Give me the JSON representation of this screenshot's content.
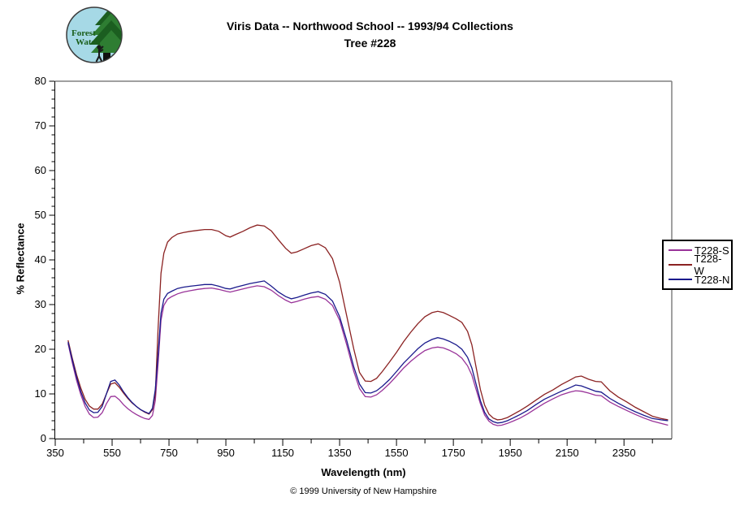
{
  "header": {
    "title_line1": "Viris Data -- Northwood School -- 1993/94 Collections",
    "title_line2": "Tree #228"
  },
  "logo": {
    "line1": "Forest",
    "line2": "Watch",
    "bg_color": "#a6d9e6",
    "outline_color": "#3a3a3a",
    "text_color": "#1a5e1a",
    "tree_dark": "#1b5e20",
    "tree_light": "#2e7d32",
    "trunk_color": "#101010",
    "person_color": "#1a1a1a"
  },
  "footer": {
    "copyright": "© 1999 University of New Hampshire"
  },
  "chart_data": {
    "type": "line",
    "title": "Viris Data -- Northwood School -- 1993/94 Collections",
    "subtitle": "Tree #228",
    "xlabel": "Wavelength (nm)",
    "ylabel": "% Reflectance",
    "xlim": [
      350,
      2518
    ],
    "ylim": [
      0,
      80
    ],
    "x_ticks": [
      350,
      550,
      750,
      950,
      1150,
      1350,
      1550,
      1750,
      1950,
      2150,
      2350
    ],
    "x_minor_step": 100,
    "y_ticks": [
      0,
      10,
      20,
      30,
      40,
      50,
      60,
      70,
      80
    ],
    "y_minor_step": 2,
    "grid": false,
    "legend_position": "right",
    "axis_colors": {
      "frame": "#808080",
      "axis": "#000000"
    },
    "x": [
      395,
      410,
      425,
      440,
      455,
      470,
      485,
      500,
      515,
      530,
      545,
      560,
      575,
      590,
      605,
      620,
      635,
      650,
      665,
      680,
      692,
      702,
      712,
      722,
      732,
      745,
      760,
      780,
      800,
      825,
      850,
      875,
      900,
      925,
      950,
      965,
      985,
      1010,
      1035,
      1060,
      1085,
      1110,
      1135,
      1160,
      1180,
      1200,
      1225,
      1250,
      1275,
      1300,
      1325,
      1350,
      1375,
      1400,
      1420,
      1440,
      1460,
      1480,
      1500,
      1525,
      1550,
      1575,
      1600,
      1625,
      1650,
      1675,
      1695,
      1715,
      1735,
      1760,
      1780,
      1800,
      1815,
      1830,
      1845,
      1860,
      1875,
      1890,
      1905,
      1920,
      1940,
      1960,
      1985,
      2010,
      2040,
      2070,
      2100,
      2130,
      2160,
      2180,
      2200,
      2225,
      2250,
      2270,
      2300,
      2330,
      2360,
      2390,
      2420,
      2450,
      2480,
      2505
    ],
    "series": [
      {
        "name": "T228-S",
        "color": "#993399",
        "values": [
          21.3,
          17.0,
          13.0,
          9.8,
          7.2,
          5.5,
          4.7,
          4.8,
          5.8,
          7.8,
          9.4,
          9.5,
          8.7,
          7.6,
          6.7,
          6.0,
          5.4,
          4.9,
          4.5,
          4.3,
          5.2,
          8.5,
          17.0,
          26.5,
          29.8,
          31.2,
          31.8,
          32.4,
          32.8,
          33.1,
          33.4,
          33.6,
          33.7,
          33.4,
          33.0,
          32.8,
          33.1,
          33.5,
          33.9,
          34.2,
          34.0,
          33.2,
          32.0,
          31.0,
          30.4,
          30.7,
          31.2,
          31.6,
          31.8,
          31.2,
          29.8,
          26.5,
          21.0,
          15.0,
          11.2,
          9.4,
          9.3,
          9.8,
          10.8,
          12.3,
          14.0,
          15.8,
          17.3,
          18.6,
          19.7,
          20.3,
          20.5,
          20.3,
          19.8,
          19.0,
          18.0,
          16.3,
          14.2,
          11.0,
          7.8,
          5.3,
          3.9,
          3.2,
          2.9,
          3.0,
          3.4,
          3.9,
          4.6,
          5.5,
          6.7,
          7.9,
          8.9,
          9.8,
          10.4,
          10.7,
          10.6,
          10.2,
          9.7,
          9.6,
          8.2,
          7.2,
          6.3,
          5.4,
          4.6,
          3.9,
          3.4,
          3.0
        ]
      },
      {
        "name": "T228-W",
        "color": "#8b2222",
        "values": [
          22.0,
          18.0,
          14.3,
          11.3,
          8.8,
          7.3,
          6.6,
          6.6,
          7.7,
          10.0,
          12.2,
          12.5,
          11.5,
          10.2,
          9.0,
          8.0,
          7.2,
          6.5,
          5.9,
          5.5,
          6.5,
          10.0,
          25.0,
          37.0,
          41.5,
          44.0,
          45.0,
          45.8,
          46.1,
          46.4,
          46.6,
          46.8,
          46.8,
          46.4,
          45.4,
          45.1,
          45.7,
          46.4,
          47.2,
          47.8,
          47.6,
          46.5,
          44.5,
          42.6,
          41.5,
          41.8,
          42.5,
          43.2,
          43.6,
          42.7,
          40.3,
          35.0,
          27.5,
          20.0,
          14.8,
          12.9,
          12.8,
          13.5,
          15.0,
          17.1,
          19.3,
          21.7,
          23.8,
          25.7,
          27.3,
          28.2,
          28.5,
          28.2,
          27.6,
          26.8,
          26.0,
          24.0,
          21.0,
          16.0,
          11.0,
          7.5,
          5.5,
          4.6,
          4.2,
          4.3,
          4.7,
          5.4,
          6.3,
          7.3,
          8.6,
          9.9,
          10.9,
          12.1,
          13.1,
          13.8,
          14.0,
          13.3,
          12.8,
          12.7,
          10.7,
          9.3,
          8.2,
          7.0,
          6.0,
          5.0,
          4.5,
          4.2
        ]
      },
      {
        "name": "T228-N",
        "color": "#1a1a8c",
        "values": [
          21.6,
          17.6,
          13.7,
          10.5,
          8.0,
          6.4,
          5.8,
          5.9,
          7.2,
          10.0,
          12.8,
          13.1,
          12.0,
          10.5,
          9.2,
          8.1,
          7.2,
          6.5,
          6.0,
          5.6,
          6.8,
          11.0,
          19.0,
          28.0,
          31.2,
          32.5,
          33.0,
          33.6,
          33.9,
          34.1,
          34.3,
          34.5,
          34.5,
          34.1,
          33.6,
          33.5,
          33.9,
          34.3,
          34.7,
          35.0,
          35.3,
          34.1,
          32.8,
          31.8,
          31.3,
          31.6,
          32.1,
          32.6,
          32.9,
          32.3,
          30.8,
          27.3,
          22.0,
          16.0,
          12.2,
          10.3,
          10.2,
          10.7,
          11.7,
          13.2,
          15.0,
          16.9,
          18.5,
          20.1,
          21.4,
          22.2,
          22.6,
          22.3,
          21.8,
          21.0,
          20.0,
          18.2,
          15.8,
          12.2,
          8.5,
          5.9,
          4.4,
          3.8,
          3.5,
          3.6,
          4.0,
          4.6,
          5.4,
          6.3,
          7.6,
          8.8,
          9.7,
          10.6,
          11.4,
          12.0,
          11.8,
          11.2,
          10.6,
          10.4,
          9.0,
          7.9,
          6.9,
          6.0,
          5.2,
          4.5,
          4.2,
          4.0
        ]
      }
    ]
  }
}
